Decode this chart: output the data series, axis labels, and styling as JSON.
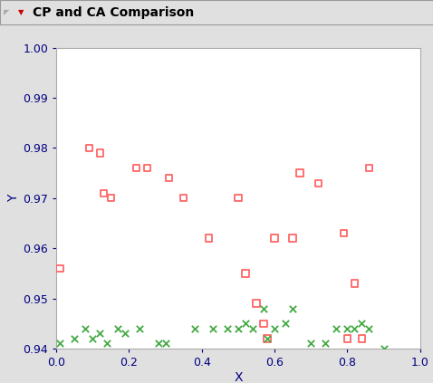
{
  "title": "CP and CA Comparison",
  "xlabel": "X",
  "ylabel": "Y",
  "xlim": [
    0.0,
    1.0
  ],
  "ylim": [
    0.94,
    1.0
  ],
  "yticks": [
    0.94,
    0.95,
    0.96,
    0.97,
    0.98,
    0.99,
    1.0
  ],
  "xticks": [
    0.0,
    0.2,
    0.4,
    0.6,
    0.8,
    1.0
  ],
  "cp_points": [
    [
      0.01,
      0.956
    ],
    [
      0.09,
      0.98
    ],
    [
      0.12,
      0.979
    ],
    [
      0.13,
      0.971
    ],
    [
      0.15,
      0.97
    ],
    [
      0.22,
      0.976
    ],
    [
      0.25,
      0.976
    ],
    [
      0.31,
      0.974
    ],
    [
      0.35,
      0.97
    ],
    [
      0.42,
      0.962
    ],
    [
      0.5,
      0.97
    ],
    [
      0.52,
      0.955
    ],
    [
      0.55,
      0.949
    ],
    [
      0.57,
      0.945
    ],
    [
      0.58,
      0.942
    ],
    [
      0.6,
      0.962
    ],
    [
      0.65,
      0.962
    ],
    [
      0.67,
      0.975
    ],
    [
      0.72,
      0.973
    ],
    [
      0.79,
      0.963
    ],
    [
      0.8,
      0.942
    ],
    [
      0.82,
      0.953
    ],
    [
      0.84,
      0.942
    ],
    [
      0.86,
      0.976
    ]
  ],
  "ca_points": [
    [
      0.01,
      0.941
    ],
    [
      0.05,
      0.942
    ],
    [
      0.08,
      0.944
    ],
    [
      0.1,
      0.942
    ],
    [
      0.12,
      0.943
    ],
    [
      0.14,
      0.941
    ],
    [
      0.17,
      0.944
    ],
    [
      0.19,
      0.943
    ],
    [
      0.23,
      0.944
    ],
    [
      0.28,
      0.941
    ],
    [
      0.3,
      0.941
    ],
    [
      0.38,
      0.944
    ],
    [
      0.43,
      0.944
    ],
    [
      0.47,
      0.944
    ],
    [
      0.5,
      0.944
    ],
    [
      0.52,
      0.945
    ],
    [
      0.54,
      0.944
    ],
    [
      0.57,
      0.948
    ],
    [
      0.58,
      0.942
    ],
    [
      0.6,
      0.944
    ],
    [
      0.63,
      0.945
    ],
    [
      0.65,
      0.948
    ],
    [
      0.7,
      0.941
    ],
    [
      0.74,
      0.941
    ],
    [
      0.77,
      0.944
    ],
    [
      0.8,
      0.944
    ],
    [
      0.82,
      0.944
    ],
    [
      0.84,
      0.945
    ],
    [
      0.86,
      0.944
    ],
    [
      0.9,
      0.94
    ]
  ],
  "cp_color": "#FF6666",
  "ca_color": "#44AA44",
  "background_color": "#e0e0e0",
  "plot_bg": "#ffffff",
  "title_fontsize": 10,
  "axis_fontsize": 9,
  "label_color": "#000080"
}
